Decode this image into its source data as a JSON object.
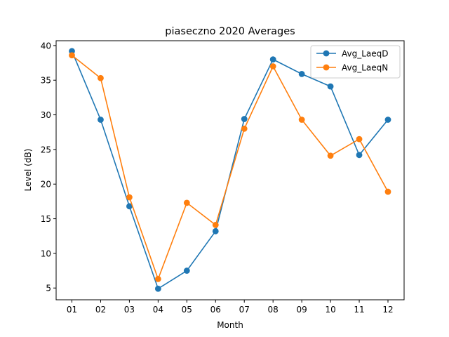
{
  "chart_data": {
    "type": "line",
    "title": "piaseczno 2020 Averages",
    "xlabel": "Month",
    "ylabel": "Level (dB)",
    "categories": [
      "01",
      "02",
      "03",
      "04",
      "05",
      "06",
      "07",
      "08",
      "09",
      "10",
      "11",
      "12"
    ],
    "ylim": [
      3.3,
      40.7
    ],
    "yticks": [
      5,
      10,
      15,
      20,
      25,
      30,
      35,
      40
    ],
    "grid": false,
    "legend_position": "top-right",
    "series": [
      {
        "name": "Avg_LaeqD",
        "color": "#1f77b4",
        "values": [
          39.2,
          29.3,
          16.8,
          4.9,
          7.5,
          13.2,
          29.4,
          38.0,
          35.9,
          34.1,
          24.2,
          29.3
        ]
      },
      {
        "name": "Avg_LaeqN",
        "color": "#ff7f0e",
        "values": [
          38.6,
          35.3,
          18.1,
          6.3,
          17.3,
          14.1,
          28.0,
          37.0,
          29.3,
          24.1,
          26.5,
          18.9
        ]
      }
    ]
  }
}
